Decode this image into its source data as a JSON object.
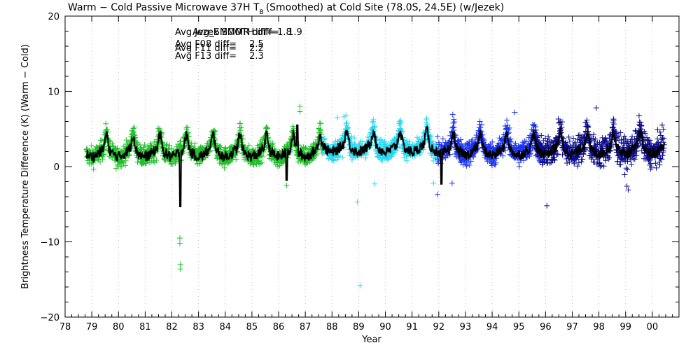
{
  "chart_data": {
    "type": "scatter",
    "title": "Warm − Cold Passive Microwave 37H T",
    "title_subscript": "B",
    "title_rest": "(Smoothed) at Cold Site (78.0S, 24.5E) (w/Jezek)",
    "xlabel": "Year",
    "ylabel": "Brightness Temperature Difference (K) (Warm − Cold)",
    "xlim": [
      78,
      101
    ],
    "ylim": [
      -20,
      20
    ],
    "x_ticks": [
      "78",
      "79",
      "80",
      "81",
      "82",
      "83",
      "84",
      "85",
      "86",
      "87",
      "88",
      "89",
      "90",
      "91",
      "92",
      "93",
      "94",
      "95",
      "96",
      "97",
      "98",
      "99",
      "00"
    ],
    "y_ticks": [
      {
        "value": 20,
        "label": "20"
      },
      {
        "value": 10,
        "label": "10"
      },
      {
        "value": 0,
        "label": "0"
      },
      {
        "value": -10,
        "label": "−10"
      },
      {
        "value": -20,
        "label": "−20"
      }
    ],
    "grid": "dotted vertical at each year",
    "legend": [
      {
        "text": "Avg Jezek SMMR diff=",
        "value": "1.8",
        "color": "#1fbf2a"
      },
      {
        "text": "Avg_SMOOTH diff=",
        "value": "1.9",
        "color": "#8c8c8c"
      },
      {
        "text": "Avg F08 diff=",
        "value": "2.5",
        "color": "#22d8f0"
      },
      {
        "text": "Avg F11 diff=",
        "value": "2.2",
        "color": "#1a33ee"
      },
      {
        "text": "Avg F13 diff=",
        "value": "2.3",
        "color": "#0a0a8a"
      }
    ],
    "series": [
      {
        "name": "SMMR",
        "color": "#1fbf2a",
        "x_range": [
          78.8,
          87.65
        ],
        "mean": 1.8,
        "outliers": [
          [
            82.3,
            -9.5
          ],
          [
            82.3,
            -10.2
          ],
          [
            82.32,
            -13.0
          ],
          [
            82.32,
            -13.6
          ],
          [
            86.8,
            8.0
          ],
          [
            86.8,
            7.3
          ],
          [
            86.3,
            -2.5
          ]
        ]
      },
      {
        "name": "F08",
        "color": "#22d8f0",
        "x_range": [
          87.65,
          91.95
        ],
        "mean": 2.5,
        "outliers": [
          [
            89.05,
            -15.8
          ],
          [
            88.95,
            -4.7
          ],
          [
            89.6,
            -2.3
          ],
          [
            88.2,
            6.5
          ],
          [
            88.45,
            6.6
          ],
          [
            91.8,
            -2.2
          ]
        ]
      },
      {
        "name": "F11",
        "color": "#1a33ee",
        "x_range": [
          91.95,
          95.85
        ],
        "mean": 2.2,
        "outliers": [
          [
            91.95,
            -3.7
          ],
          [
            92.5,
            -2.2
          ],
          [
            94.85,
            7.2
          ]
        ]
      },
      {
        "name": "F13",
        "color": "#0a0a8a",
        "x_range": [
          95.6,
          100.45
        ],
        "mean": 2.3,
        "outliers": [
          [
            96.05,
            -5.2
          ],
          [
            97.9,
            7.8
          ],
          [
            99.05,
            -2.6
          ],
          [
            99.1,
            -3.1
          ]
        ]
      },
      {
        "name": "Smoothed",
        "color": "#000000",
        "x_range": [
          78.8,
          100.45
        ],
        "spikes": [
          [
            82.32,
            -5.3
          ],
          [
            86.3,
            -1.8
          ],
          [
            86.7,
            5.5
          ],
          [
            92.1,
            -2.3
          ]
        ]
      }
    ]
  }
}
